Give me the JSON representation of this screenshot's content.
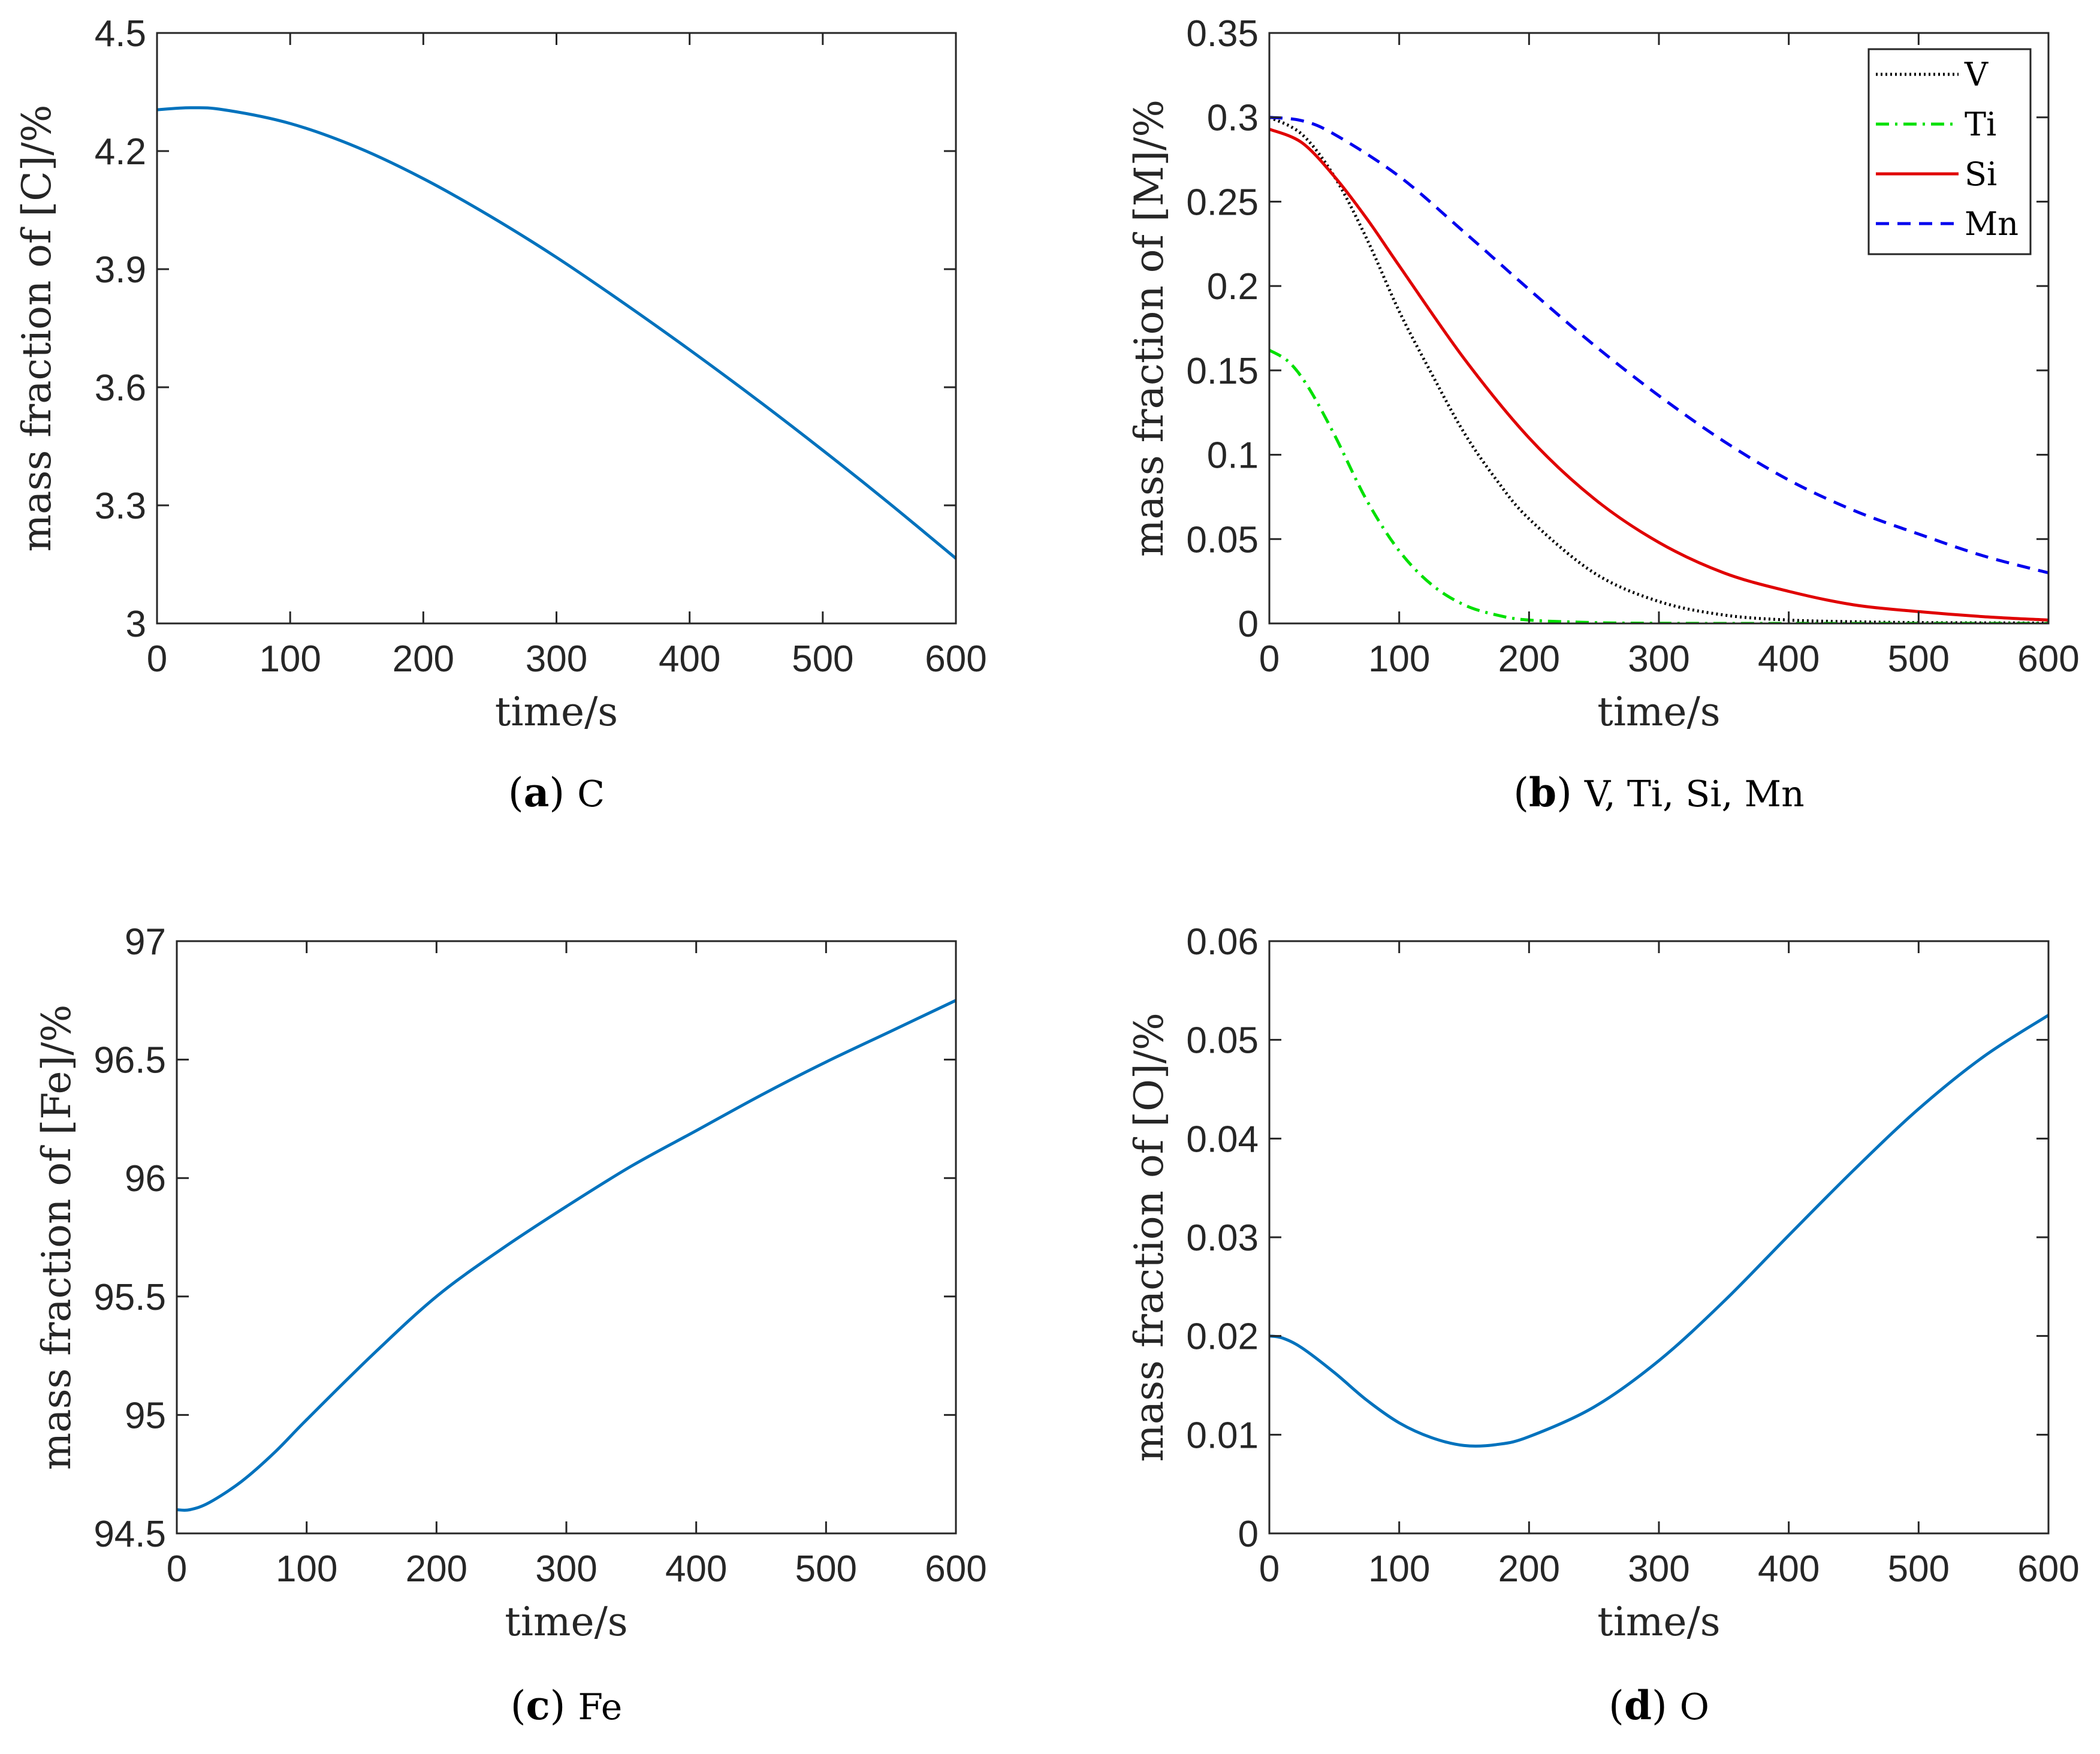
{
  "colors": {
    "axis": "#262626",
    "primary_line": "#0072BD",
    "V": "#000000",
    "Ti": "#00E000",
    "Si": "#E00000",
    "Mn": "#0000EE"
  },
  "chart_data": [
    {
      "id": "a",
      "type": "line",
      "caption_letter": "a",
      "caption_text": "C",
      "xlabel": "time/s",
      "ylabel": "mass fraction of [C]/%",
      "xlim": [
        0,
        600
      ],
      "ylim": [
        3,
        4.5
      ],
      "xticks": [
        0,
        100,
        200,
        300,
        400,
        500,
        600
      ],
      "yticks": [
        3,
        3.3,
        3.6,
        3.9,
        4.2,
        4.5
      ],
      "ytick_labels": [
        "3",
        "3.3",
        "3.6",
        "3.9",
        "4.2",
        "4.5"
      ],
      "legend": false,
      "series": [
        {
          "name": "C",
          "style": "solid",
          "color_key": "primary_line",
          "x": [
            0,
            25,
            50,
            100,
            150,
            200,
            250,
            300,
            350,
            400,
            450,
            500,
            550,
            600
          ],
          "y": [
            4.305,
            4.31,
            4.305,
            4.27,
            4.21,
            4.13,
            4.035,
            3.93,
            3.815,
            3.695,
            3.57,
            3.44,
            3.305,
            3.165
          ]
        }
      ]
    },
    {
      "id": "b",
      "type": "line",
      "caption_letter": "b",
      "caption_text": "V, Ti, Si, Mn",
      "xlabel": "time/s",
      "ylabel": "mass fraction of [M]/%",
      "xlim": [
        0,
        600
      ],
      "ylim": [
        0,
        0.35
      ],
      "xticks": [
        0,
        100,
        200,
        300,
        400,
        500,
        600
      ],
      "yticks": [
        0,
        0.05,
        0.1,
        0.15,
        0.2,
        0.25,
        0.3,
        0.35
      ],
      "ytick_labels": [
        "0",
        "0.05",
        "0.1",
        "0.15",
        "0.2",
        "0.25",
        "0.3",
        "0.35"
      ],
      "legend": true,
      "legend_position": "top-right",
      "series": [
        {
          "name": "V",
          "style": "dotted",
          "color_key": "V",
          "x": [
            0,
            25,
            50,
            75,
            100,
            125,
            150,
            175,
            200,
            250,
            300,
            350,
            400,
            450,
            500,
            600
          ],
          "y": [
            0.3,
            0.29,
            0.265,
            0.228,
            0.185,
            0.148,
            0.113,
            0.085,
            0.062,
            0.03,
            0.013,
            0.005,
            0.002,
            0.001,
            0.0005,
            0.0002
          ]
        },
        {
          "name": "Ti",
          "style": "dashdot",
          "color_key": "Ti",
          "x": [
            0,
            15,
            30,
            50,
            75,
            100,
            125,
            150,
            175,
            200,
            250,
            300,
            400,
            600
          ],
          "y": [
            0.162,
            0.155,
            0.14,
            0.112,
            0.073,
            0.043,
            0.023,
            0.011,
            0.005,
            0.002,
            0.0005,
            0.0001,
            0,
            0
          ]
        },
        {
          "name": "Si",
          "style": "solid",
          "color_key": "Si",
          "x": [
            0,
            25,
            50,
            75,
            100,
            150,
            200,
            250,
            300,
            350,
            400,
            450,
            500,
            550,
            600
          ],
          "y": [
            0.293,
            0.285,
            0.265,
            0.24,
            0.212,
            0.157,
            0.11,
            0.074,
            0.048,
            0.03,
            0.019,
            0.011,
            0.007,
            0.004,
            0.002
          ]
        },
        {
          "name": "Mn",
          "style": "dashed",
          "color_key": "Mn",
          "x": [
            0,
            25,
            50,
            100,
            150,
            200,
            250,
            300,
            350,
            400,
            450,
            500,
            550,
            600
          ],
          "y": [
            0.3,
            0.298,
            0.29,
            0.265,
            0.232,
            0.198,
            0.165,
            0.135,
            0.108,
            0.085,
            0.067,
            0.053,
            0.04,
            0.03
          ]
        }
      ]
    },
    {
      "id": "c",
      "type": "line",
      "caption_letter": "c",
      "caption_text": "Fe",
      "xlabel": "time/s",
      "ylabel": "mass fraction of [Fe]/%",
      "xlim": [
        0,
        600
      ],
      "ylim": [
        94.5,
        97
      ],
      "xticks": [
        0,
        100,
        200,
        300,
        400,
        500,
        600
      ],
      "yticks": [
        94.5,
        95,
        95.5,
        96,
        96.5,
        97
      ],
      "ytick_labels": [
        "94.5",
        "95",
        "95.5",
        "96",
        "96.5",
        "97"
      ],
      "legend": false,
      "series": [
        {
          "name": "Fe",
          "style": "solid",
          "color_key": "primary_line",
          "x": [
            0,
            10,
            25,
            50,
            75,
            100,
            150,
            200,
            250,
            300,
            350,
            400,
            450,
            500,
            550,
            600
          ],
          "y": [
            94.6,
            94.6,
            94.63,
            94.72,
            94.84,
            94.98,
            95.25,
            95.5,
            95.7,
            95.88,
            96.05,
            96.2,
            96.35,
            96.49,
            96.62,
            96.75
          ]
        }
      ]
    },
    {
      "id": "d",
      "type": "line",
      "caption_letter": "d",
      "caption_text": "O",
      "xlabel": "time/s",
      "ylabel": "mass fraction of [O]/%",
      "xlim": [
        0,
        600
      ],
      "ylim": [
        0,
        0.06
      ],
      "xticks": [
        0,
        100,
        200,
        300,
        400,
        500,
        600
      ],
      "yticks": [
        0,
        0.01,
        0.02,
        0.03,
        0.04,
        0.05,
        0.06
      ],
      "ytick_labels": [
        "0",
        "0.01",
        "0.02",
        "0.03",
        "0.04",
        "0.05",
        "0.06"
      ],
      "legend": false,
      "series": [
        {
          "name": "O",
          "style": "solid",
          "color_key": "primary_line",
          "x": [
            0,
            10,
            25,
            50,
            75,
            100,
            125,
            150,
            175,
            200,
            250,
            300,
            350,
            400,
            450,
            500,
            550,
            600
          ],
          "y": [
            0.02,
            0.0198,
            0.0188,
            0.0163,
            0.0135,
            0.0112,
            0.0097,
            0.0089,
            0.009,
            0.0098,
            0.0128,
            0.0175,
            0.0235,
            0.0302,
            0.0368,
            0.043,
            0.0483,
            0.0525
          ]
        }
      ]
    }
  ]
}
